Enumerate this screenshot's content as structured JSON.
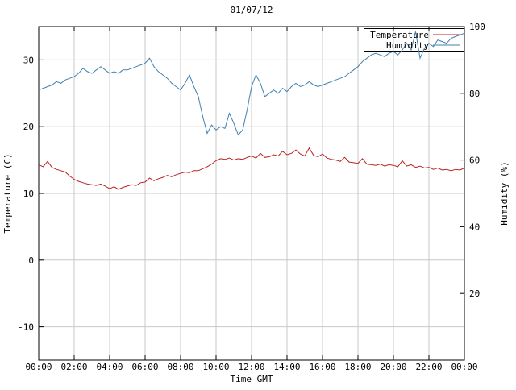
{
  "chart_data": {
    "type": "line",
    "title": "01/07/12",
    "xlabel": "Time GMT",
    "ylabel_left": "Temperature (C)",
    "ylabel_right": "Humidity (%)",
    "x_range_hours": [
      0,
      24
    ],
    "x_tick_interval_hours": 2,
    "x_tick_labels": [
      "00:00",
      "02:00",
      "04:00",
      "06:00",
      "08:00",
      "10:00",
      "12:00",
      "14:00",
      "16:00",
      "18:00",
      "20:00",
      "22:00",
      "00:00"
    ],
    "left_axis": {
      "label": "Temperature (C)",
      "range": [
        -15,
        35
      ],
      "ticks": [
        -10,
        0,
        10,
        20,
        30
      ]
    },
    "right_axis": {
      "label": "Humidity (%)",
      "range": [
        0,
        100
      ],
      "ticks": [
        20,
        40,
        60,
        80,
        100
      ]
    },
    "grid": true,
    "legend": {
      "position": "top-right",
      "entries": [
        "Temperature",
        "Humidity"
      ]
    },
    "colors": {
      "temperature": "#bb2222",
      "humidity": "#4080b0",
      "grid": "#c8c8c8",
      "axis": "#000000",
      "background": "#ffffff"
    },
    "series": [
      {
        "name": "Temperature",
        "axis": "left",
        "color_key": "temperature",
        "x_start_hours": 0,
        "x_step_hours": 0.25,
        "values": [
          14.3,
          14.0,
          14.8,
          13.9,
          13.6,
          13.4,
          13.2,
          12.6,
          12.1,
          11.8,
          11.6,
          11.4,
          11.3,
          11.2,
          11.4,
          11.1,
          10.7,
          11.0,
          10.6,
          10.9,
          11.1,
          11.3,
          11.2,
          11.6,
          11.7,
          12.3,
          11.9,
          12.2,
          12.4,
          12.7,
          12.5,
          12.8,
          13.0,
          13.2,
          13.1,
          13.4,
          13.4,
          13.7,
          14.0,
          14.4,
          14.9,
          15.2,
          15.1,
          15.3,
          15.0,
          15.2,
          15.1,
          15.4,
          15.6,
          15.3,
          16.0,
          15.4,
          15.5,
          15.8,
          15.6,
          16.3,
          15.8,
          16.0,
          16.5,
          15.9,
          15.6,
          16.8,
          15.7,
          15.5,
          15.9,
          15.3,
          15.1,
          15.0,
          14.8,
          15.4,
          14.7,
          14.6,
          14.5,
          15.2,
          14.4,
          14.3,
          14.2,
          14.4,
          14.1,
          14.3,
          14.2,
          14.0,
          14.9,
          14.1,
          14.3,
          13.9,
          14.1,
          13.8,
          13.9,
          13.6,
          13.8,
          13.5,
          13.6,
          13.4,
          13.6,
          13.5,
          13.8
        ]
      },
      {
        "name": "Humidity",
        "axis": "right",
        "color_key": "humidity",
        "x_start_hours": 0,
        "x_step_hours": 0.25,
        "values": [
          81,
          81.5,
          82,
          82.5,
          83.5,
          83,
          84,
          84.5,
          85,
          86,
          87.5,
          86.5,
          86,
          87,
          88,
          87,
          86,
          86.5,
          86,
          87,
          87,
          87.5,
          88,
          88.5,
          89,
          90.5,
          88,
          86.5,
          85.5,
          84.5,
          83,
          82,
          81,
          83,
          85.5,
          82,
          79,
          73,
          68,
          70.5,
          69,
          70,
          69.5,
          74,
          71,
          67.5,
          69,
          75,
          82,
          85.5,
          83,
          79,
          80,
          81,
          80,
          81.5,
          80.5,
          82,
          83,
          82,
          82.5,
          83.5,
          82.5,
          82,
          82.5,
          83,
          83.5,
          84,
          84.5,
          85,
          86,
          87,
          88,
          89.5,
          90.5,
          91.5,
          92,
          91.5,
          91,
          92,
          92.5,
          91.5,
          93,
          95,
          93,
          98.5,
          90.5,
          93.5,
          95,
          94,
          96,
          95.5,
          95,
          96.5,
          97,
          97.5,
          98
        ]
      }
    ]
  }
}
